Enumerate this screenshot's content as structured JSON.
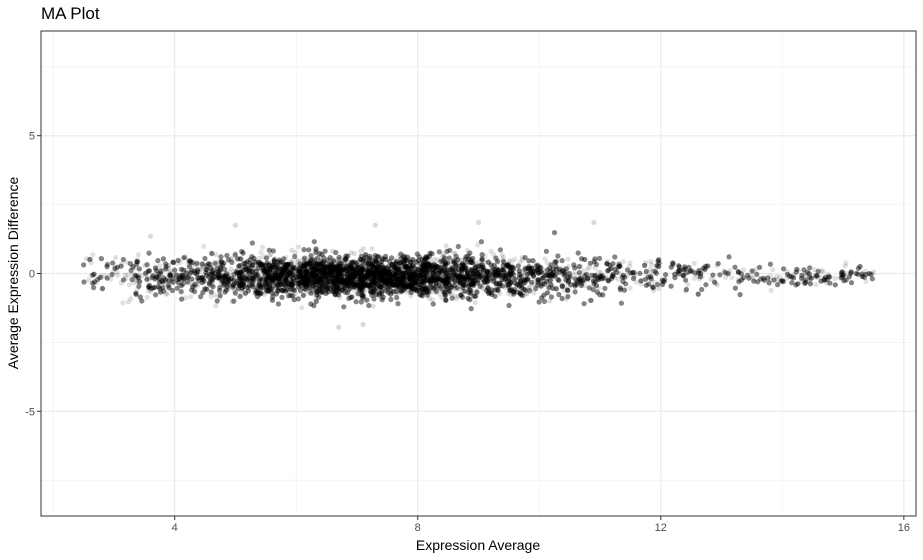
{
  "chart_data": {
    "type": "scatter",
    "title": "MA Plot",
    "xlabel": "Expression Average",
    "ylabel": "Average Expression Difference",
    "xlim": [
      1.8,
      16.2
    ],
    "ylim": [
      -8.8,
      8.8
    ],
    "x_ticks": [
      4,
      8,
      12,
      16
    ],
    "y_ticks": [
      -5,
      0,
      5
    ],
    "x_tick_labels": [
      "4",
      "8",
      "12",
      "16"
    ],
    "y_tick_labels": [
      "-5",
      "0",
      "5"
    ],
    "grid": true,
    "legend": "none",
    "point_color": "#000000",
    "point_opacity": 0.12,
    "approx_points": 12000,
    "distribution": {
      "x_range": [
        2.5,
        15.5
      ],
      "x_peak": 7.0,
      "y_center": -0.1,
      "y_spread_sd_at_peak": 0.38,
      "y_spread_sd_at_high_x": 0.15
    },
    "notable_points": [
      {
        "x": 5.0,
        "y": 1.75
      },
      {
        "x": 7.3,
        "y": 1.75
      },
      {
        "x": 9.0,
        "y": 1.85
      },
      {
        "x": 10.9,
        "y": 1.85
      },
      {
        "x": 3.6,
        "y": 1.35
      },
      {
        "x": 6.7,
        "y": -1.95
      },
      {
        "x": 7.1,
        "y": -1.85
      },
      {
        "x": 15.5,
        "y": 0.05
      }
    ]
  }
}
